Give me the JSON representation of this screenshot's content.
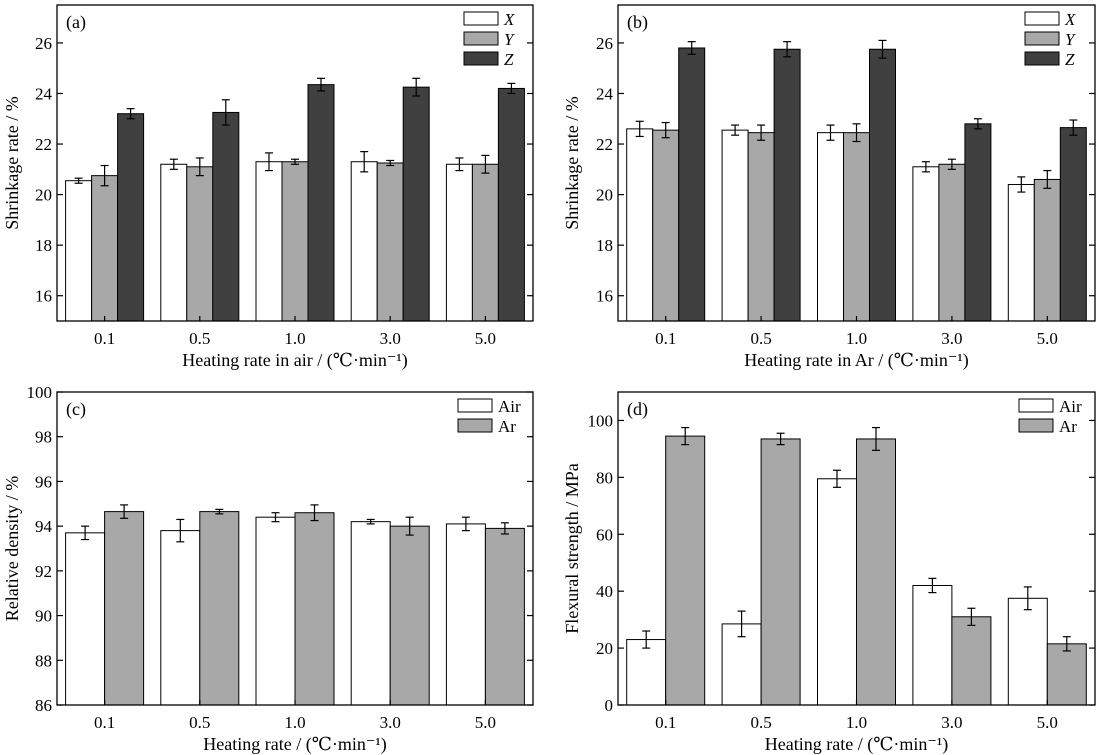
{
  "colors": {
    "air_or_x": "#ffffff",
    "y_or_ar": "#a8a8a8",
    "z": "#404040",
    "frame": "#000000"
  },
  "chart_data": [
    {
      "type": "bar",
      "panel_label": "(a)",
      "categories": [
        "0.1",
        "0.5",
        "1.0",
        "3.0",
        "5.0"
      ],
      "xlabel": "Heating rate in air / (℃·min⁻¹)",
      "ylabel": "Shrinkage rate / %",
      "ylim": [
        15,
        27.5
      ],
      "yticks": [
        "16",
        "18",
        "20",
        "22",
        "24",
        "26"
      ],
      "series": [
        {
          "name": "X",
          "color": "#ffffff",
          "values": [
            20.55,
            21.2,
            21.3,
            21.3,
            21.2
          ],
          "errors": [
            0.1,
            0.2,
            0.35,
            0.4,
            0.25
          ]
        },
        {
          "name": "Y",
          "color": "#a8a8a8",
          "values": [
            20.75,
            21.1,
            21.3,
            21.25,
            21.2
          ],
          "errors": [
            0.4,
            0.35,
            0.1,
            0.1,
            0.35
          ]
        },
        {
          "name": "Z",
          "color": "#404040",
          "values": [
            23.2,
            23.25,
            24.35,
            24.25,
            24.2
          ],
          "errors": [
            0.2,
            0.5,
            0.25,
            0.35,
            0.2
          ]
        }
      ],
      "legend": "top-right",
      "legend_italic": true
    },
    {
      "type": "bar",
      "panel_label": "(b)",
      "categories": [
        "0.1",
        "0.5",
        "1.0",
        "3.0",
        "5.0"
      ],
      "xlabel": "Heating rate in Ar / (℃·min⁻¹)",
      "ylabel": "Shrinkage rate / %",
      "ylim": [
        15,
        27.5
      ],
      "yticks": [
        "16",
        "18",
        "20",
        "22",
        "24",
        "26"
      ],
      "series": [
        {
          "name": "X",
          "color": "#ffffff",
          "values": [
            22.6,
            22.55,
            22.45,
            21.1,
            20.4
          ],
          "errors": [
            0.3,
            0.2,
            0.3,
            0.2,
            0.3
          ]
        },
        {
          "name": "Y",
          "color": "#a8a8a8",
          "values": [
            22.55,
            22.45,
            22.45,
            21.2,
            20.6
          ],
          "errors": [
            0.3,
            0.3,
            0.35,
            0.2,
            0.35
          ]
        },
        {
          "name": "Z",
          "color": "#404040",
          "values": [
            25.8,
            25.75,
            25.75,
            22.8,
            22.65
          ],
          "errors": [
            0.25,
            0.3,
            0.35,
            0.2,
            0.3
          ]
        }
      ],
      "legend": "top-right",
      "legend_italic": true
    },
    {
      "type": "bar",
      "panel_label": "(c)",
      "categories": [
        "0.1",
        "0.5",
        "1.0",
        "3.0",
        "5.0"
      ],
      "xlabel": "Heating rate / (℃·min⁻¹)",
      "ylabel": "Relative density / %",
      "ylim": [
        86,
        100
      ],
      "yticks": [
        "86",
        "88",
        "90",
        "92",
        "94",
        "96",
        "98",
        "100"
      ],
      "series": [
        {
          "name": "Air",
          "color": "#ffffff",
          "values": [
            93.7,
            93.8,
            94.4,
            94.2,
            94.1
          ],
          "errors": [
            0.3,
            0.5,
            0.2,
            0.1,
            0.3
          ]
        },
        {
          "name": "Ar",
          "color": "#a8a8a8",
          "values": [
            94.65,
            94.65,
            94.6,
            94.0,
            93.9
          ],
          "errors": [
            0.3,
            0.1,
            0.35,
            0.4,
            0.25
          ]
        }
      ],
      "legend": "top-right",
      "legend_italic": false
    },
    {
      "type": "bar",
      "panel_label": "(d)",
      "categories": [
        "0.1",
        "0.5",
        "1.0",
        "3.0",
        "5.0"
      ],
      "xlabel": "Heating rate / (℃·min⁻¹)",
      "ylabel": "Flexural strength / MPa",
      "ylim": [
        0,
        110
      ],
      "yticks": [
        "0",
        "20",
        "40",
        "60",
        "80",
        "100"
      ],
      "series": [
        {
          "name": "Air",
          "color": "#ffffff",
          "values": [
            23,
            28.5,
            79.5,
            42,
            37.5
          ],
          "errors": [
            3,
            4.5,
            3,
            2.5,
            4
          ]
        },
        {
          "name": "Ar",
          "color": "#a8a8a8",
          "values": [
            94.5,
            93.5,
            93.5,
            31,
            21.5
          ],
          "errors": [
            3,
            2,
            4,
            3,
            2.5
          ]
        }
      ],
      "legend": "top-right",
      "legend_italic": false
    }
  ]
}
